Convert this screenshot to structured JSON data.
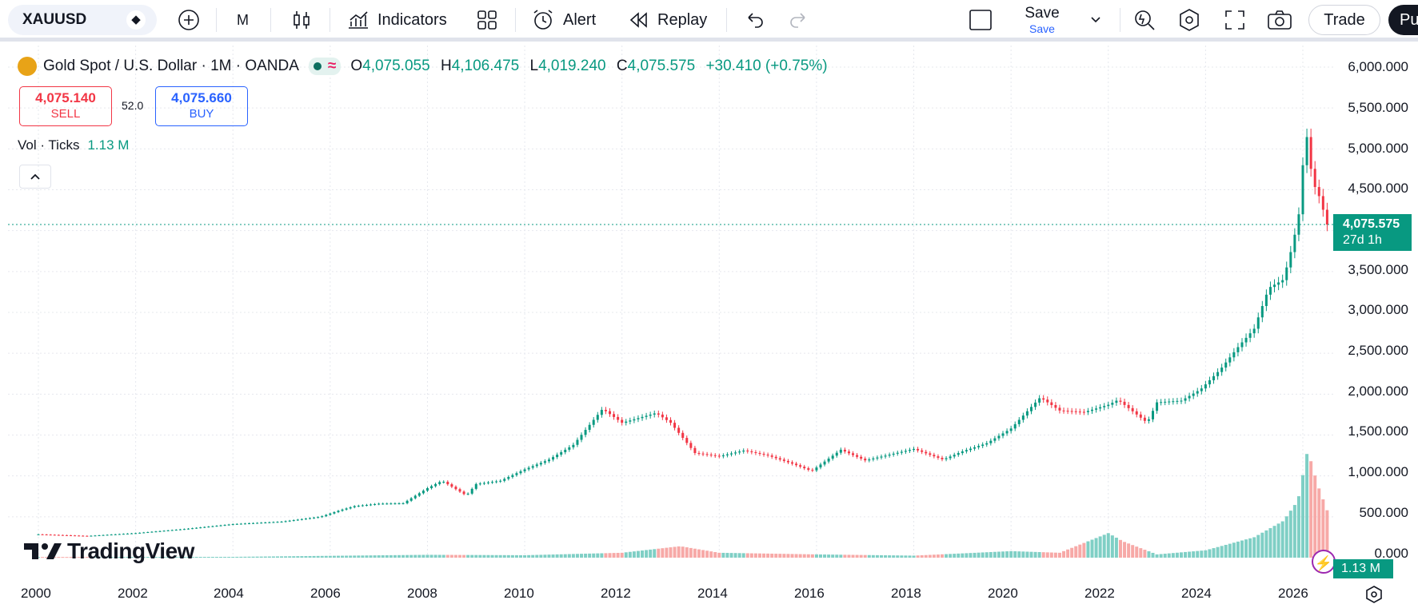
{
  "toolbar": {
    "symbol": "XAUUSD",
    "interval": "M",
    "indicators_label": "Indicators",
    "alert_label": "Alert",
    "replay_label": "Replay",
    "save_label": "Save",
    "save_sublabel": "Save",
    "trade_label": "Trade",
    "publish_label": "Pu"
  },
  "legend": {
    "title": "Gold Spot / U.S. Dollar · 1M · OANDA",
    "o_label": "O",
    "o_value": "4,075.055",
    "h_label": "H",
    "h_value": "4,106.475",
    "l_label": "L",
    "l_value": "4,019.240",
    "c_label": "C",
    "c_value": "4,075.575",
    "change": "+30.410 (+0.75%)",
    "sell_price": "4,075.140",
    "sell_label": "SELL",
    "spread": "52.0",
    "buy_price": "4,075.660",
    "buy_label": "BUY",
    "vol_label": "Vol · Ticks",
    "vol_value": "1.13 M"
  },
  "price_axis": [
    "6,000.000",
    "5,500.000",
    "5,000.000",
    "4,500.000",
    "3,500.000",
    "3,000.000",
    "2,500.000",
    "2,000.000",
    "1,500.000",
    "1,000.000",
    "500.000",
    "0.000"
  ],
  "price_tag": {
    "price": "4,075.575",
    "countdown": "27d 1h"
  },
  "volume_tag": "1.13 M",
  "time_axis": [
    "2000",
    "2002",
    "2004",
    "2006",
    "2008",
    "2010",
    "2012",
    "2014",
    "2016",
    "2018",
    "2020",
    "2022",
    "2024",
    "2026"
  ],
  "brand": "TradingView",
  "colors": {
    "up": "#089981",
    "down": "#f23645",
    "vol_up": "#7fcfc5",
    "vol_down": "#f7a9a7",
    "grid": "#e6e8ee"
  },
  "chart_data": {
    "type": "candlestick",
    "x_unit": "year",
    "y_unit": "USD",
    "ylim": [
      0,
      6000
    ],
    "xlim": [
      1999.7,
      2026.7
    ],
    "price_series": [
      [
        2000,
        285
      ],
      [
        2001,
        265
      ],
      [
        2002,
        300
      ],
      [
        2003,
        350
      ],
      [
        2004,
        410
      ],
      [
        2005,
        440
      ],
      [
        2005.8,
        500
      ],
      [
        2006.2,
        580
      ],
      [
        2006.5,
        630
      ],
      [
        2007,
        660
      ],
      [
        2007.5,
        665
      ],
      [
        2008,
        850
      ],
      [
        2008.3,
        940
      ],
      [
        2008.8,
        760
      ],
      [
        2009,
        900
      ],
      [
        2009.5,
        940
      ],
      [
        2010,
        1080
      ],
      [
        2010.5,
        1200
      ],
      [
        2011,
        1380
      ],
      [
        2011.6,
        1820
      ],
      [
        2012,
        1650
      ],
      [
        2012.7,
        1770
      ],
      [
        2013,
        1650
      ],
      [
        2013.5,
        1280
      ],
      [
        2014,
        1240
      ],
      [
        2014.5,
        1310
      ],
      [
        2015,
        1250
      ],
      [
        2015.5,
        1150
      ],
      [
        2015.9,
        1060
      ],
      [
        2016.5,
        1320
      ],
      [
        2017,
        1190
      ],
      [
        2017.5,
        1260
      ],
      [
        2018,
        1330
      ],
      [
        2018.6,
        1200
      ],
      [
        2019,
        1300
      ],
      [
        2019.5,
        1400
      ],
      [
        2020,
        1580
      ],
      [
        2020.6,
        1960
      ],
      [
        2021,
        1800
      ],
      [
        2021.5,
        1780
      ],
      [
        2022,
        1870
      ],
      [
        2022.2,
        1930
      ],
      [
        2022.8,
        1650
      ],
      [
        2023,
        1900
      ],
      [
        2023.5,
        1920
      ],
      [
        2023.9,
        2060
      ],
      [
        2024.3,
        2300
      ],
      [
        2024.7,
        2600
      ],
      [
        2025,
        2800
      ],
      [
        2025.3,
        3300
      ],
      [
        2025.6,
        3400
      ],
      [
        2025.8,
        3850
      ],
      [
        2025.95,
        4300
      ],
      [
        2026.05,
        5300
      ],
      [
        2026.2,
        4600
      ],
      [
        2026.35,
        4400
      ],
      [
        2026.5,
        4075
      ]
    ],
    "volume_series": [
      [
        2000,
        8
      ],
      [
        2004,
        10
      ],
      [
        2008,
        35
      ],
      [
        2010,
        30
      ],
      [
        2012,
        60
      ],
      [
        2013.2,
        140
      ],
      [
        2014,
        60
      ],
      [
        2016,
        40
      ],
      [
        2018,
        25
      ],
      [
        2020,
        80
      ],
      [
        2021,
        60
      ],
      [
        2022,
        300
      ],
      [
        2022.3,
        200
      ],
      [
        2023,
        40
      ],
      [
        2024,
        90
      ],
      [
        2025,
        250
      ],
      [
        2025.6,
        450
      ],
      [
        2025.9,
        700
      ],
      [
        2026.1,
        1320
      ],
      [
        2026.3,
        900
      ],
      [
        2026.5,
        580
      ]
    ]
  }
}
